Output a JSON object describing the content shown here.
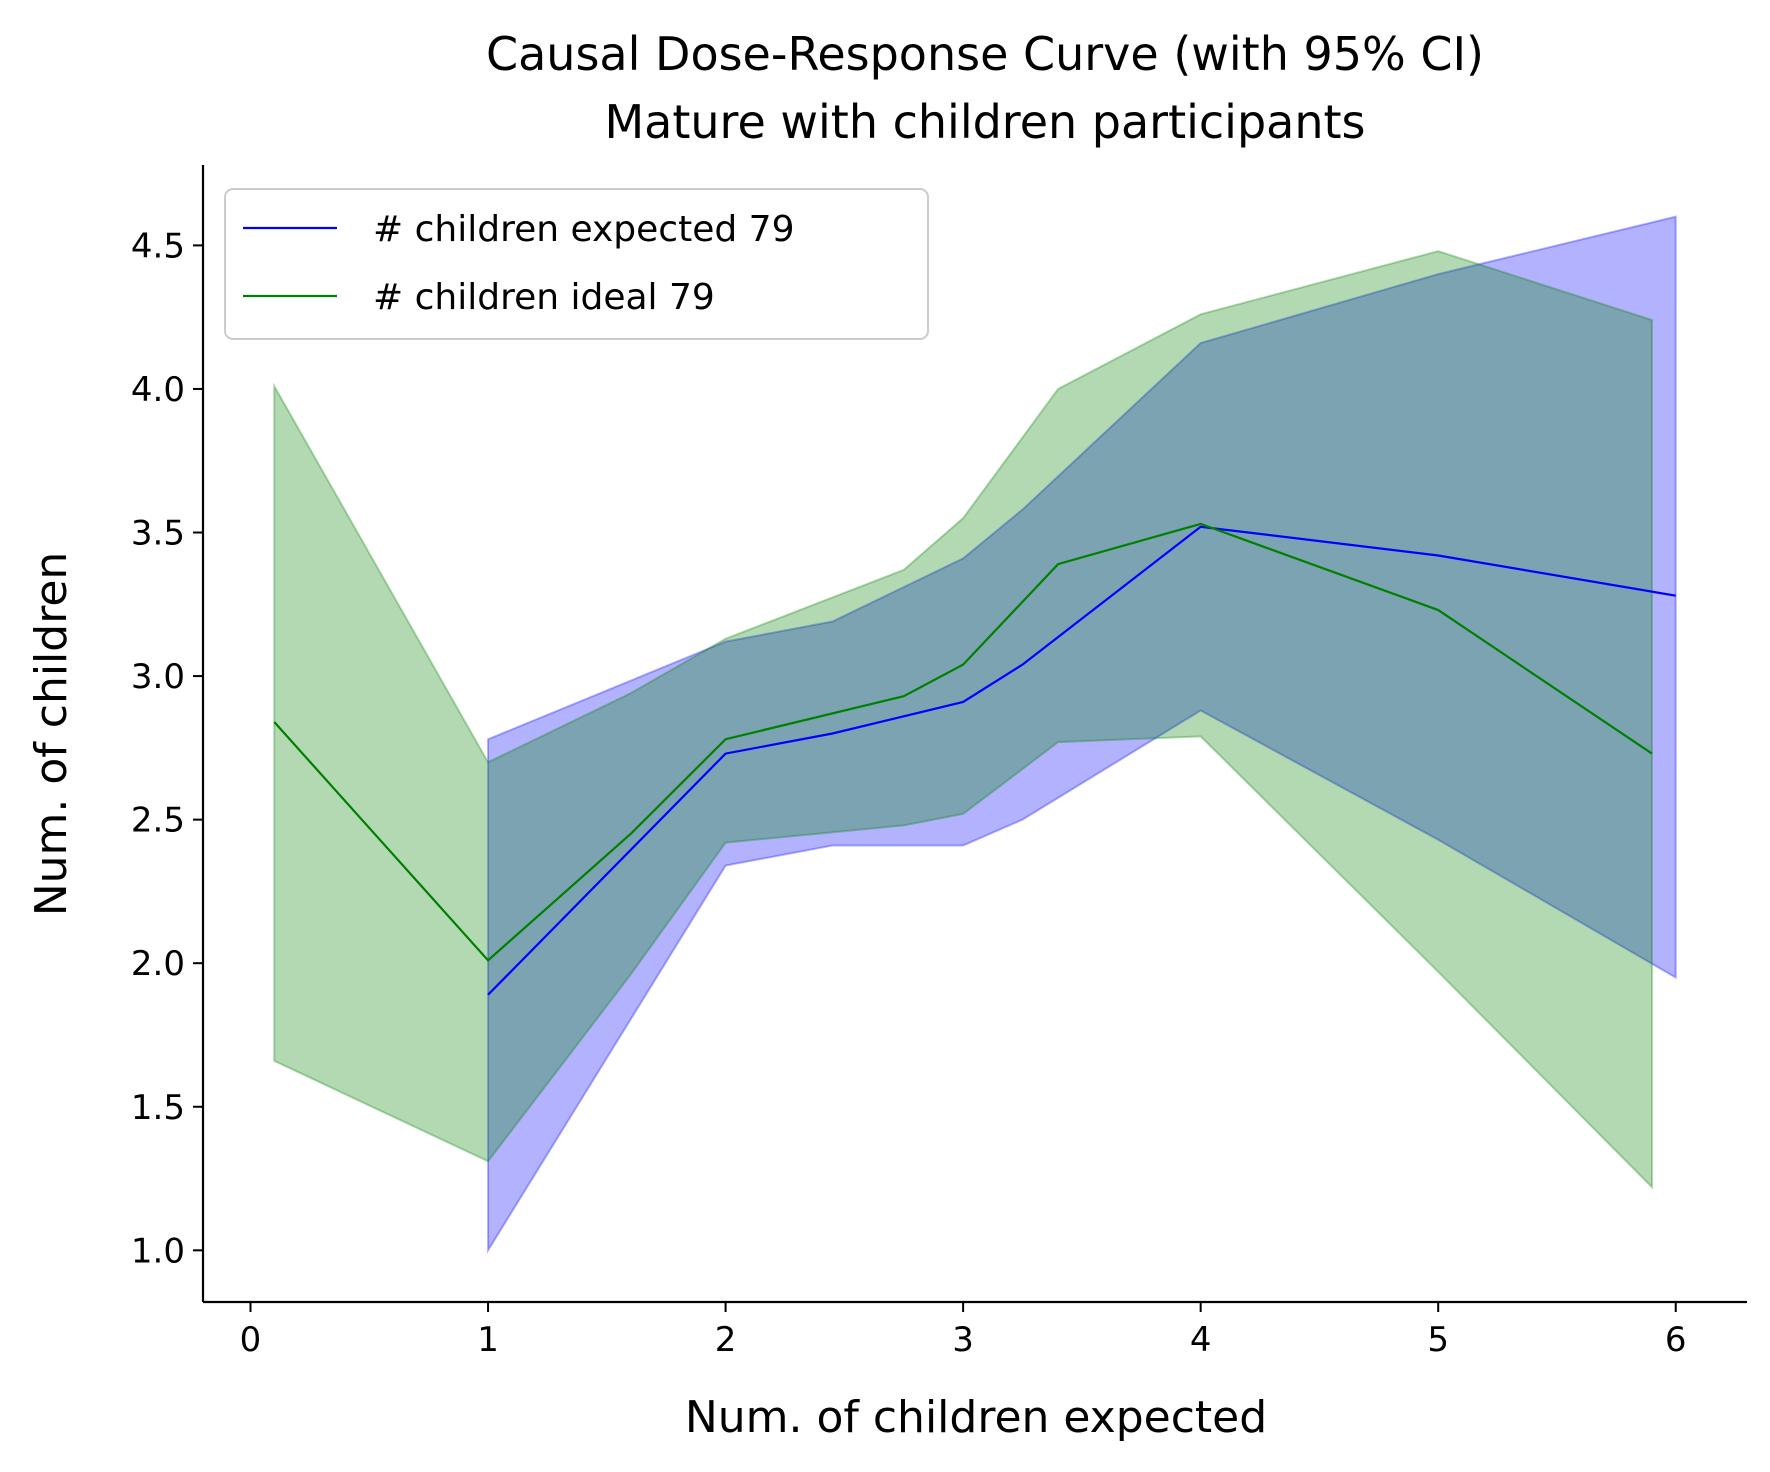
{
  "chart_data": {
    "type": "line",
    "title": "Causal Dose-Response Curve (with 95% CI)",
    "subtitle": "Mature with children participants",
    "xlabel": "Num. of children expected",
    "ylabel": "Num. of children",
    "xlim": [
      -0.2,
      6.3
    ],
    "ylim": [
      0.82,
      4.78
    ],
    "x_ticks": [
      0,
      1,
      2,
      3,
      4,
      5,
      6
    ],
    "x_tick_labels": [
      "0",
      "1",
      "2",
      "3",
      "4",
      "5",
      "6"
    ],
    "y_ticks": [
      1.0,
      1.5,
      2.0,
      2.5,
      3.0,
      3.5,
      4.0,
      4.5
    ],
    "y_tick_labels": [
      "1.0",
      "1.5",
      "2.0",
      "2.5",
      "3.0",
      "3.5",
      "4.0",
      "4.5"
    ],
    "grid": false,
    "legend_position": "top-left",
    "series": [
      {
        "name": "# children expected 79",
        "color": "#0000ff",
        "band_color": "#0000ff",
        "band_opacity": 0.3,
        "x": [
          1.0,
          2.0,
          2.45,
          3.0,
          3.25,
          4.0,
          5.0,
          6.0
        ],
        "y": [
          1.89,
          2.73,
          2.8,
          2.91,
          3.04,
          3.52,
          3.42,
          3.28
        ],
        "lower": [
          1.0,
          2.34,
          2.41,
          2.41,
          2.5,
          2.88,
          2.43,
          1.95
        ],
        "upper": [
          2.78,
          3.12,
          3.19,
          3.41,
          3.58,
          4.16,
          4.4,
          4.6
        ]
      },
      {
        "name": "# children ideal 79",
        "color": "#008000",
        "band_color": "#008000",
        "band_opacity": 0.3,
        "x": [
          0.1,
          1.0,
          1.6,
          2.0,
          2.75,
          3.0,
          3.4,
          4.0,
          5.0,
          5.9
        ],
        "y": [
          2.84,
          2.01,
          2.45,
          2.78,
          2.93,
          3.04,
          3.39,
          3.53,
          3.23,
          2.73
        ],
        "lower": [
          1.66,
          1.31,
          1.96,
          2.42,
          2.48,
          2.52,
          2.77,
          2.79,
          1.97,
          1.22
        ],
        "upper": [
          4.01,
          2.7,
          2.94,
          3.13,
          3.37,
          3.55,
          4.0,
          4.26,
          4.48,
          4.24
        ]
      }
    ]
  }
}
